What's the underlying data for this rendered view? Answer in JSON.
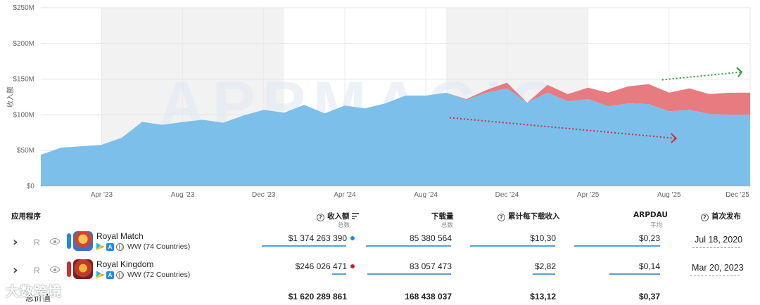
{
  "chart_data": {
    "type": "area",
    "stacked": true,
    "ylabel": "收入额",
    "y_ticks": [
      "$0",
      "$50M",
      "$100M",
      "$150M",
      "$200M",
      "$250M"
    ],
    "ylim": [
      0,
      250
    ],
    "x_ticks": [
      "Apr '23",
      "Aug '23",
      "Dec '23",
      "Apr '24",
      "Aug '24",
      "Dec '24",
      "Apr '25",
      "Aug '25",
      "Dec '25"
    ],
    "x_months": [
      "2023-01",
      "2023-02",
      "2023-03",
      "2023-04",
      "2023-05",
      "2023-06",
      "2023-07",
      "2023-08",
      "2023-09",
      "2023-10",
      "2023-11",
      "2023-12",
      "2024-01",
      "2024-02",
      "2024-03",
      "2024-04",
      "2024-05",
      "2024-06",
      "2024-07",
      "2024-08",
      "2024-09",
      "2024-10",
      "2024-11",
      "2024-12",
      "2025-01",
      "2025-02",
      "2025-03",
      "2025-04",
      "2025-05",
      "2025-06",
      "2025-07",
      "2025-08",
      "2025-09",
      "2025-10",
      "2025-11",
      "2025-12"
    ],
    "series": [
      {
        "name": "Royal Match",
        "color": "#7bbfea",
        "values": [
          44,
          54,
          56,
          58,
          68,
          90,
          86,
          90,
          93,
          89,
          99,
          107,
          103,
          114,
          102,
          113,
          109,
          116,
          127,
          127,
          131,
          121,
          131,
          137,
          117,
          131,
          119,
          122,
          112,
          116,
          115,
          105,
          107,
          101,
          100,
          100
        ]
      },
      {
        "name": "Royal Kingdom",
        "color": "#e87b7f",
        "values": [
          0,
          0,
          0,
          0,
          0,
          0,
          0,
          0,
          0,
          0,
          0,
          0,
          0,
          0,
          0,
          0,
          0,
          0,
          0,
          0,
          0,
          1,
          4,
          8,
          0,
          11,
          10,
          16,
          19,
          24,
          28,
          26,
          30,
          28,
          31,
          31
        ]
      }
    ],
    "grid": true,
    "shaded_year_bands": true,
    "annotations": [
      {
        "type": "arrow",
        "color": "#d32f2f",
        "style": "dotted",
        "direction": "down"
      },
      {
        "type": "arrow",
        "color": "#2ca02c",
        "style": "dotted",
        "direction": "up"
      }
    ],
    "watermark": "APPMAGIC"
  },
  "table": {
    "headers": {
      "app": "应用程序",
      "revenue": "收入额",
      "revenue_sub": "总数",
      "downloads": "下载量",
      "downloads_sub": "总数",
      "cum_rpd": "累计每下载收入",
      "arpdau": "ARPDAU",
      "arpdau_sub": "平均",
      "release": "首次发布"
    },
    "rows": [
      {
        "r": "R",
        "name": "Royal Match",
        "region": "WW (74 Countries)",
        "revenue": "$1 374 263 390",
        "downloads": "85 380 564",
        "cum_rpd": "$10,30",
        "arpdau": "$0,23",
        "release": "Jul 18, 2020",
        "dot_color": "#1e88e5",
        "bar_color": "#1e88e5"
      },
      {
        "r": "R",
        "name": "Royal Kingdom",
        "region": "WW (72 Countries)",
        "revenue": "$246 026 471",
        "downloads": "83 057 473",
        "cum_rpd": "$2,82",
        "arpdau": "$0,14",
        "release": "Mar 20, 2023",
        "dot_color": "#c62828",
        "bar_color": "#d32f2f"
      }
    ],
    "totals": {
      "label": "总价值",
      "revenue": "$1 620 289 861",
      "downloads": "168 438 037",
      "cum_rpd": "$13,12",
      "arpdau": "$0,37"
    }
  },
  "brand_watermark": "大数跨境",
  "colors": {
    "accent": "#1e88e5",
    "royal_match": "#7bbfea",
    "royal_kingdom": "#e87b7f"
  }
}
